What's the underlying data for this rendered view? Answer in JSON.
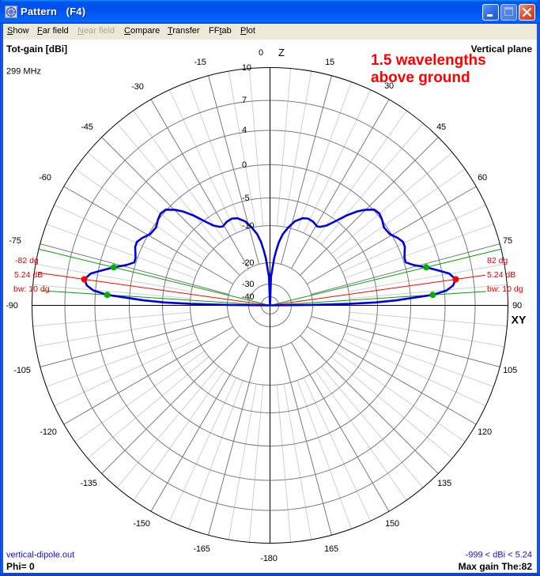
{
  "window": {
    "title": "Pattern   (F4)"
  },
  "menu": {
    "items": [
      {
        "pre": "",
        "key": "S",
        "post": "how",
        "enabled": true
      },
      {
        "pre": "",
        "key": "F",
        "post": "ar field",
        "enabled": true
      },
      {
        "pre": "",
        "key": "N",
        "post": "ear field",
        "enabled": false
      },
      {
        "pre": "",
        "key": "C",
        "post": "ompare",
        "enabled": true
      },
      {
        "pre": "",
        "key": "T",
        "post": "ransfer",
        "enabled": true
      },
      {
        "pre": "FF",
        "key": "t",
        "post": "ab",
        "enabled": true
      },
      {
        "pre": "",
        "key": "P",
        "post": "lot",
        "enabled": true
      }
    ]
  },
  "plot_header": {
    "quantity": "Tot-gain [dBi]",
    "frequency": "299 MHz",
    "plane": "Vertical plane"
  },
  "annotation": {
    "line1": "1.5 wavelengths",
    "line2": "above ground"
  },
  "marker_labels": {
    "left": {
      "angle": "-82 dg",
      "gain": "5.24 dB",
      "bw": "bw: 10 dg"
    },
    "right": {
      "angle": "82 dg",
      "gain": "5.24 dB",
      "bw": "bw: 10 dg"
    }
  },
  "footer": {
    "file": "vertical-dipole.out",
    "phi": "Phi= 0",
    "range": "-999 < dBi < 5.24",
    "max_gain": "Max gain The:82"
  },
  "colors": {
    "pattern": "#0000e6",
    "max_marker": "#ff0000",
    "beamwidth_marker": "#00a000",
    "beamwidth_dot": "#00b000",
    "annotation": "#ff0000",
    "footer_text": "#1010d0",
    "major_grid": "#7a7a7a",
    "minor_grid": "#cfcfcf"
  },
  "chart_data": {
    "type": "polar",
    "title": "Tot-gain [dBi]",
    "subtitle": "Vertical plane",
    "frequency": "299 MHz",
    "phi_deg": 0,
    "angle_convention": "theta from zenith (0 = Z, up), +90 = XY horizon right, -90 = horizon left",
    "axis_labels": {
      "zenith": "Z",
      "horizon": "XY"
    },
    "angle_tick_labels": [
      "0",
      "15",
      "30",
      "45",
      "60",
      "75",
      "90",
      "105",
      "120",
      "135",
      "150",
      "165",
      "-180",
      "-165",
      "-150",
      "-135",
      "-120",
      "-105",
      "-90",
      "-75",
      "-60",
      "-45",
      "-30",
      "-15"
    ],
    "radial_ticks_dbi": [
      10,
      7,
      4,
      0,
      -5,
      -10,
      -20,
      -30,
      -40
    ],
    "radial_tick_labels": [
      "10",
      "7",
      "4",
      "0",
      "-5",
      "-10",
      "-20",
      "-30",
      "-40"
    ],
    "grid": {
      "minor_spoke_step_deg": 5,
      "major_spoke_step_deg": 15
    },
    "series": [
      {
        "name": "Tot-gain",
        "theta_deg": [
          -90,
          -89.4,
          -88.9,
          -88.4,
          -87.7,
          -86.8,
          -86.3,
          -85.2,
          -83.8,
          -82,
          -79.9,
          -78.3,
          -76.3,
          -74.3,
          -72.4,
          -70.5,
          -66.6,
          -64.5,
          -62.2,
          -59.2,
          -55.6,
          -52.5,
          -50,
          -47.4,
          -44.8,
          -42.8,
          -40.4,
          -37.9,
          -35.4,
          -32.5,
          -30.8,
          -27.2,
          -23.6,
          -20.5,
          -16.4,
          -13.1,
          -10.2,
          -8,
          -6.5,
          -5,
          -3.7,
          -2,
          0,
          2,
          3.7,
          5,
          6.5,
          8,
          10.2,
          13.1,
          16.4,
          20.5,
          23.6,
          27.2,
          30.8,
          32.5,
          35.4,
          37.9,
          40.4,
          42.8,
          44.8,
          47.4,
          50,
          52.5,
          55.6,
          59.2,
          62.2,
          64.5,
          66.6,
          70.5,
          72.4,
          74.3,
          76.3,
          78.3,
          79.9,
          82,
          83.8,
          85.2,
          86.3,
          86.8,
          87.7,
          88.4,
          88.9,
          89.4,
          90
        ],
        "gain_dbi": [
          -999,
          -21.9,
          -10.2,
          -5.4,
          -2.1,
          0.82,
          2.6,
          4.19,
          4.9,
          5.24,
          4.68,
          3.65,
          2.34,
          0.98,
          0.19,
          0.22,
          0.72,
          0.78,
          0.44,
          -0.2,
          -0.4,
          0.05,
          0.25,
          0.1,
          -0.9,
          -1.9,
          -3.4,
          -5.1,
          -6.7,
          -7.6,
          -7.8,
          -7.4,
          -7.3,
          -7.6,
          -8.6,
          -10,
          -12,
          -14.3,
          -16.6,
          -18.8,
          -22.9,
          -26.7,
          -999,
          -26.7,
          -22.9,
          -18.8,
          -16.6,
          -14.3,
          -12,
          -10,
          -8.6,
          -7.6,
          -7.3,
          -7.4,
          -7.8,
          -7.6,
          -6.7,
          -5.1,
          -3.4,
          -1.9,
          -0.9,
          0.1,
          0.25,
          0.05,
          -0.4,
          -0.2,
          0.44,
          0.78,
          0.72,
          0.22,
          0.19,
          0.98,
          2.34,
          3.65,
          4.68,
          5.24,
          4.9,
          4.19,
          2.6,
          0.82,
          -2.1,
          -5.4,
          -10.2,
          -21.9,
          -999
        ]
      }
    ],
    "markers": {
      "max_theta_deg": 82,
      "max_gain_dbi": 5.24,
      "beamwidth_deg": 10,
      "half_power_theta_deg": [
        76.3,
        86.3
      ],
      "half_power_gain_dbi": [
        2.34,
        2.6
      ]
    },
    "range_dbi": {
      "min": -999,
      "max": 5.24
    },
    "rlim_dbi": [
      -40,
      10
    ]
  }
}
